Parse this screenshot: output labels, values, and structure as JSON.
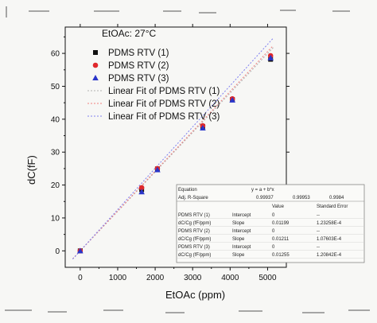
{
  "chart_data": {
    "type": "scatter",
    "title": "EtOAc: 27°C",
    "xlabel": "EtOAc (ppm)",
    "ylabel": "dC(fF)",
    "xlim": [
      -400,
      5500
    ],
    "ylim": [
      -5,
      68
    ],
    "xticks": [
      "0",
      "1000",
      "2000",
      "3000",
      "4000",
      "5000"
    ],
    "yticks": [
      "0",
      "10",
      "20",
      "30",
      "40",
      "50",
      "60"
    ],
    "series": [
      {
        "name": "PDMS RTV (1)",
        "marker": "square",
        "color": "#111111",
        "x": [
          0,
          1640,
          2060,
          3270,
          4060,
          5080
        ],
        "y": [
          0,
          18.6,
          24.9,
          37.8,
          46.0,
          58.2
        ]
      },
      {
        "name": "PDMS RTV (2)",
        "marker": "circle",
        "color": "#e0282c",
        "x": [
          0,
          1640,
          2060,
          3270,
          4060,
          5080
        ],
        "y": [
          0,
          19.2,
          25.0,
          38.0,
          46.2,
          59.3
        ]
      },
      {
        "name": "PDMS RTV (3)",
        "marker": "triangle",
        "color": "#2a35c9",
        "x": [
          0,
          1640,
          2060,
          3270,
          4060,
          5080
        ],
        "y": [
          0,
          17.9,
          24.6,
          37.3,
          45.8,
          58.6
        ]
      }
    ],
    "fits": [
      {
        "name": "Linear Fit of PDMS RTV (1)",
        "color": "#b0b0b0",
        "slope": 0.01199,
        "intercept": 0
      },
      {
        "name": "Linear Fit of PDMS RTV (2)",
        "color": "#f08080",
        "slope": 0.01211,
        "intercept": 0
      },
      {
        "name": "Linear Fit of PDMS RTV (3)",
        "color": "#8080f0",
        "slope": 0.01255,
        "intercept": 0
      }
    ],
    "legend_position": "top-left",
    "grid": false,
    "stats_table": {
      "equation_label": "Equation",
      "equation": "y = a + b*x",
      "r2_label": "Adj. R-Square",
      "r2_values": [
        "0.99937",
        "0.99953",
        "0.9984"
      ],
      "header": [
        "",
        "",
        "Value",
        "Standard Error"
      ],
      "rows": [
        [
          "PDMS RTV (1)",
          "Intercept",
          "0",
          "--"
        ],
        [
          "dC/Cg (fF/ppm)",
          "Slope",
          "0.01199",
          "1.23258E-4"
        ],
        [
          "PDMS RTV (2)",
          "Intercept",
          "0",
          "--"
        ],
        [
          "dC/Cg (fF/ppm)",
          "Slope",
          "0.01211",
          "1.07603E-4"
        ],
        [
          "PDMS RTV (3)",
          "Intercept",
          "0",
          "--"
        ],
        [
          "dC/Cg (fF/ppm)",
          "Slope",
          "0.01255",
          "1.20842E-4"
        ]
      ]
    }
  }
}
